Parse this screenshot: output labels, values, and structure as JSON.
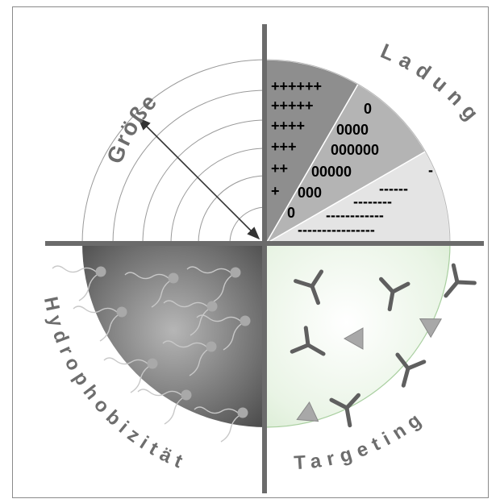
{
  "quadrants": {
    "size": "Größe",
    "charge": "Ladung",
    "hydrophobicity": "Hydrophobizität",
    "targeting": "Targeting"
  },
  "charge_rows": {
    "positive": [
      "++++++",
      "+++++",
      "++++",
      "+++",
      "++",
      "+"
    ],
    "neutral": [
      "0",
      "0000",
      "000000",
      "00000",
      "000",
      "0"
    ],
    "negative": [
      "-",
      "------",
      "--------",
      "------------",
      "----------------"
    ]
  },
  "colors": {
    "axis": "#6b6b6b",
    "label": "#6d6d6d",
    "positive_sector": "#8e8e8e",
    "neutral_sector": "#b4b4b4",
    "negative_sector": "#e4e4e4",
    "hydrophobic_dark": "#2a2a2a",
    "targeting_tint": "#cfe6c8"
  }
}
